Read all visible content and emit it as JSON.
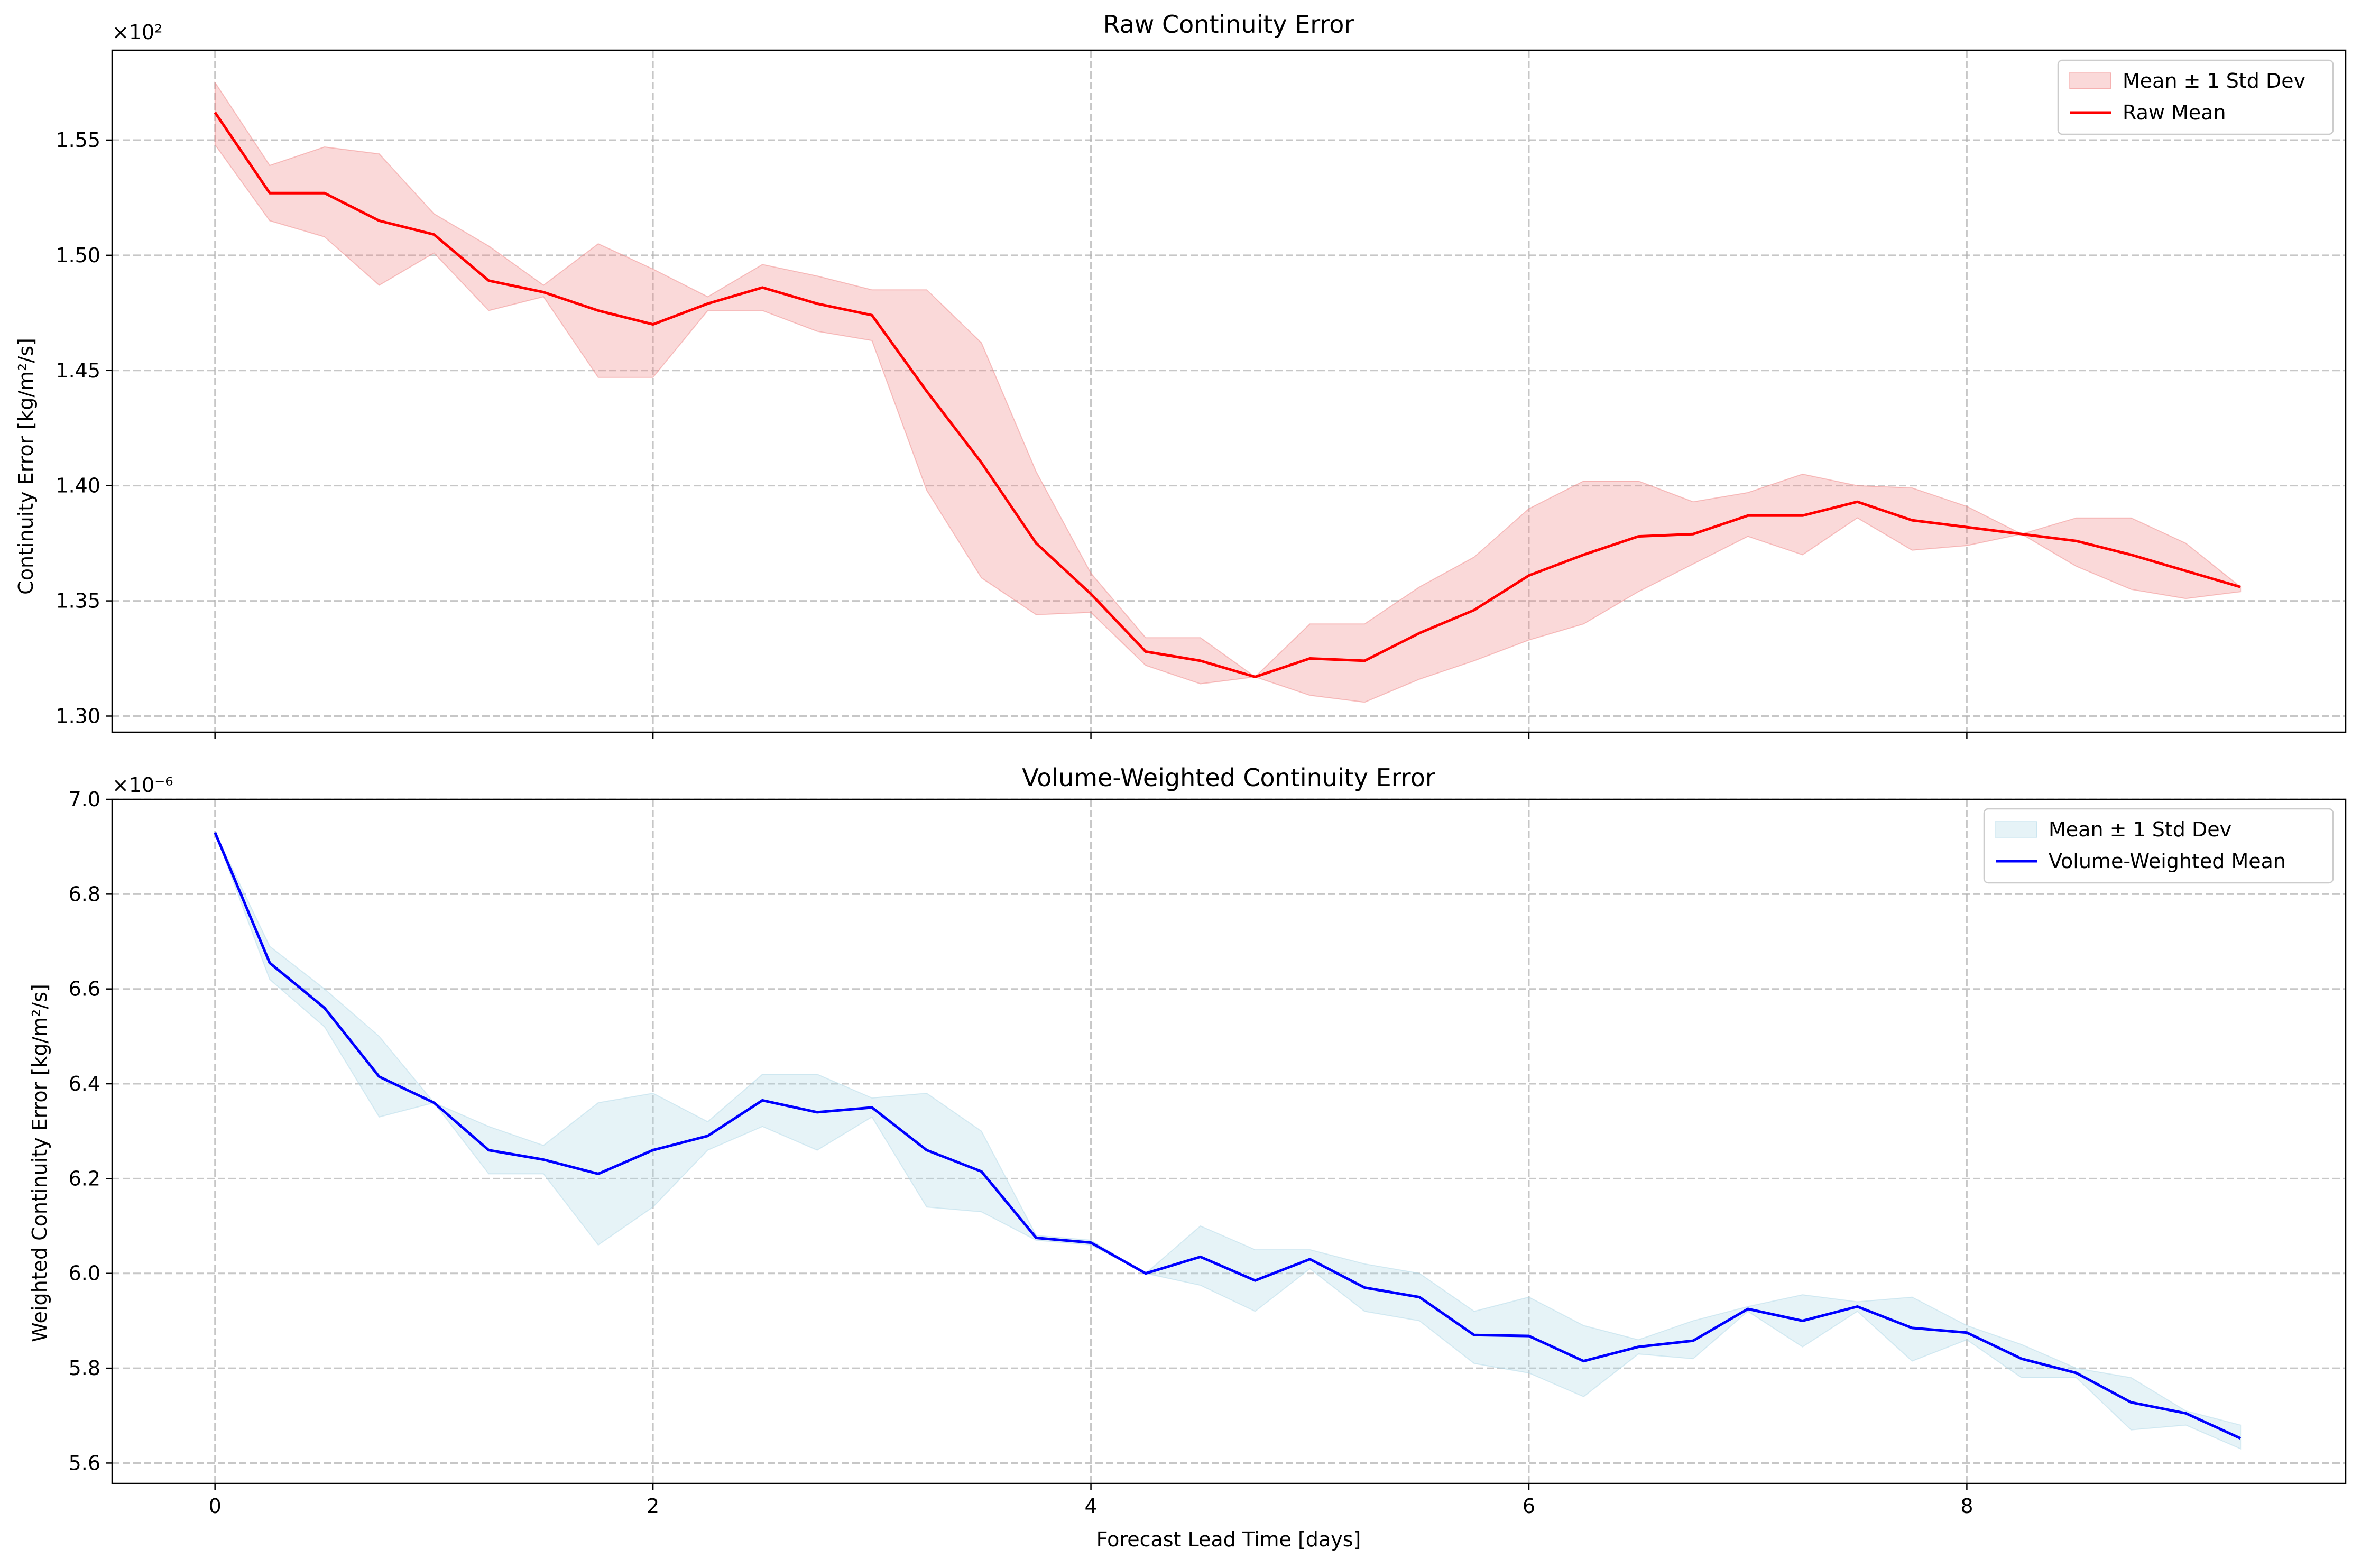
{
  "chart_data": [
    {
      "type": "line",
      "title": "Raw Continuity Error",
      "xlabel": "",
      "ylabel": "Continuity Error [kg/m²/s]",
      "y_multiplier_label": "×10²",
      "y_scale": 100,
      "xlim": [
        -0.47,
        9.73
      ],
      "ylim": [
        129.3,
        158.9
      ],
      "x_ticks": [
        0,
        2,
        4,
        6,
        8
      ],
      "x_tick_labels": [],
      "y_ticks": [
        130,
        135,
        140,
        145,
        150,
        155
      ],
      "y_tick_labels": [
        "1.30",
        "1.35",
        "1.40",
        "1.45",
        "1.50",
        "1.55"
      ],
      "grid": true,
      "legend_position": "top-right",
      "colors": {
        "line": "#ff0000",
        "band_fill": "#f08080",
        "band_edge": "#f08080"
      },
      "x": [
        0,
        0.25,
        0.5,
        0.75,
        1,
        1.25,
        1.5,
        1.75,
        2,
        2.25,
        2.5,
        2.75,
        3,
        3.25,
        3.5,
        3.75,
        4,
        4.25,
        4.5,
        4.75,
        5,
        5.25,
        5.5,
        5.75,
        6,
        6.25,
        6.5,
        6.75,
        7,
        7.25,
        7.5,
        7.75,
        8,
        8.25,
        8.5,
        8.75,
        9,
        9.25
      ],
      "series": [
        {
          "name": "Raw Mean",
          "legend_kind": "line",
          "values": [
            156.2,
            152.7,
            152.7,
            151.5,
            150.9,
            148.9,
            148.4,
            147.6,
            147.0,
            147.9,
            148.6,
            147.9,
            147.4,
            144.1,
            141.0,
            137.5,
            135.3,
            132.8,
            132.4,
            131.7,
            132.5,
            132.4,
            133.6,
            134.6,
            136.1,
            137.0,
            137.8,
            137.9,
            138.7,
            138.7,
            139.3,
            138.5,
            138.2,
            137.9,
            137.6,
            137.0,
            136.3,
            135.6
          ]
        },
        {
          "name": "Mean ± 1 Std Dev",
          "legend_kind": "band",
          "upper": [
            157.5,
            153.9,
            154.7,
            154.4,
            151.8,
            150.4,
            148.7,
            150.5,
            149.4,
            148.2,
            149.6,
            149.1,
            148.5,
            148.5,
            146.2,
            140.6,
            136.2,
            133.4,
            133.4,
            131.7,
            134.0,
            134.0,
            135.6,
            136.9,
            139.0,
            140.2,
            140.2,
            139.3,
            139.7,
            140.5,
            140.0,
            139.9,
            139.1,
            137.9,
            138.6,
            138.6,
            137.5,
            135.6
          ],
          "lower": [
            154.8,
            151.5,
            150.8,
            148.7,
            150.1,
            147.6,
            148.2,
            144.7,
            144.7,
            147.6,
            147.6,
            146.7,
            146.3,
            139.8,
            136.0,
            134.4,
            134.5,
            132.2,
            131.4,
            131.7,
            130.9,
            130.6,
            131.6,
            132.4,
            133.3,
            134.0,
            135.4,
            136.6,
            137.8,
            137.0,
            138.6,
            137.2,
            137.4,
            137.9,
            136.5,
            135.5,
            135.1,
            135.4
          ]
        }
      ]
    },
    {
      "type": "line",
      "title": "Volume-Weighted Continuity Error",
      "xlabel": "Forecast Lead Time [days]",
      "ylabel": "Weighted Continuity Error [kg/m²/s]",
      "y_multiplier_label": "×10⁻⁶",
      "y_scale": 1e-06,
      "xlim": [
        -0.47,
        9.73
      ],
      "ylim": [
        5.557,
        7.0
      ],
      "x_ticks": [
        0,
        2,
        4,
        6,
        8
      ],
      "x_tick_labels": [
        "0",
        "2",
        "4",
        "6",
        "8"
      ],
      "y_ticks": [
        5.6,
        5.8,
        6.0,
        6.2,
        6.4,
        6.6,
        6.8,
        7.0
      ],
      "y_tick_labels": [
        "5.6",
        "5.8",
        "6.0",
        "6.2",
        "6.4",
        "6.6",
        "6.8",
        "7.0"
      ],
      "grid": true,
      "legend_position": "top-right",
      "colors": {
        "line": "#0000ff",
        "band_fill": "#add8e6",
        "band_edge": "#add8e6"
      },
      "x": [
        0,
        0.25,
        0.5,
        0.75,
        1,
        1.25,
        1.5,
        1.75,
        2,
        2.25,
        2.5,
        2.75,
        3,
        3.25,
        3.5,
        3.75,
        4,
        4.25,
        4.5,
        4.75,
        5,
        5.25,
        5.5,
        5.75,
        6,
        6.25,
        6.5,
        6.75,
        7,
        7.25,
        7.5,
        7.75,
        8,
        8.25,
        8.5,
        8.75,
        9,
        9.25
      ],
      "series": [
        {
          "name": "Volume-Weighted Mean",
          "legend_kind": "line",
          "values": [
            6.93,
            6.655,
            6.56,
            6.415,
            6.36,
            6.26,
            6.24,
            6.21,
            6.26,
            6.29,
            6.365,
            6.34,
            6.35,
            6.26,
            6.215,
            6.075,
            6.065,
            6.0,
            6.035,
            5.985,
            6.03,
            5.97,
            5.95,
            5.87,
            5.868,
            5.815,
            5.845,
            5.858,
            5.925,
            5.9,
            5.93,
            5.885,
            5.875,
            5.82,
            5.79,
            5.728,
            5.705,
            5.652
          ]
        },
        {
          "name": "Mean ± 1 Std Dev",
          "legend_kind": "band",
          "upper": [
            6.93,
            6.69,
            6.6,
            6.5,
            6.36,
            6.31,
            6.27,
            6.36,
            6.38,
            6.32,
            6.42,
            6.42,
            6.37,
            6.38,
            6.3,
            6.08,
            6.07,
            6.0,
            6.1,
            6.05,
            6.05,
            6.02,
            6.0,
            5.92,
            5.95,
            5.89,
            5.86,
            5.9,
            5.93,
            5.955,
            5.94,
            5.95,
            5.89,
            5.85,
            5.8,
            5.78,
            5.71,
            5.68
          ],
          "lower": [
            6.93,
            6.62,
            6.52,
            6.33,
            6.36,
            6.21,
            6.21,
            6.06,
            6.14,
            6.26,
            6.31,
            6.26,
            6.33,
            6.14,
            6.13,
            6.07,
            6.06,
            6.0,
            5.975,
            5.92,
            6.01,
            5.92,
            5.9,
            5.81,
            5.79,
            5.74,
            5.83,
            5.82,
            5.92,
            5.845,
            5.92,
            5.815,
            5.86,
            5.78,
            5.78,
            5.67,
            5.68,
            5.63
          ]
        }
      ]
    }
  ]
}
